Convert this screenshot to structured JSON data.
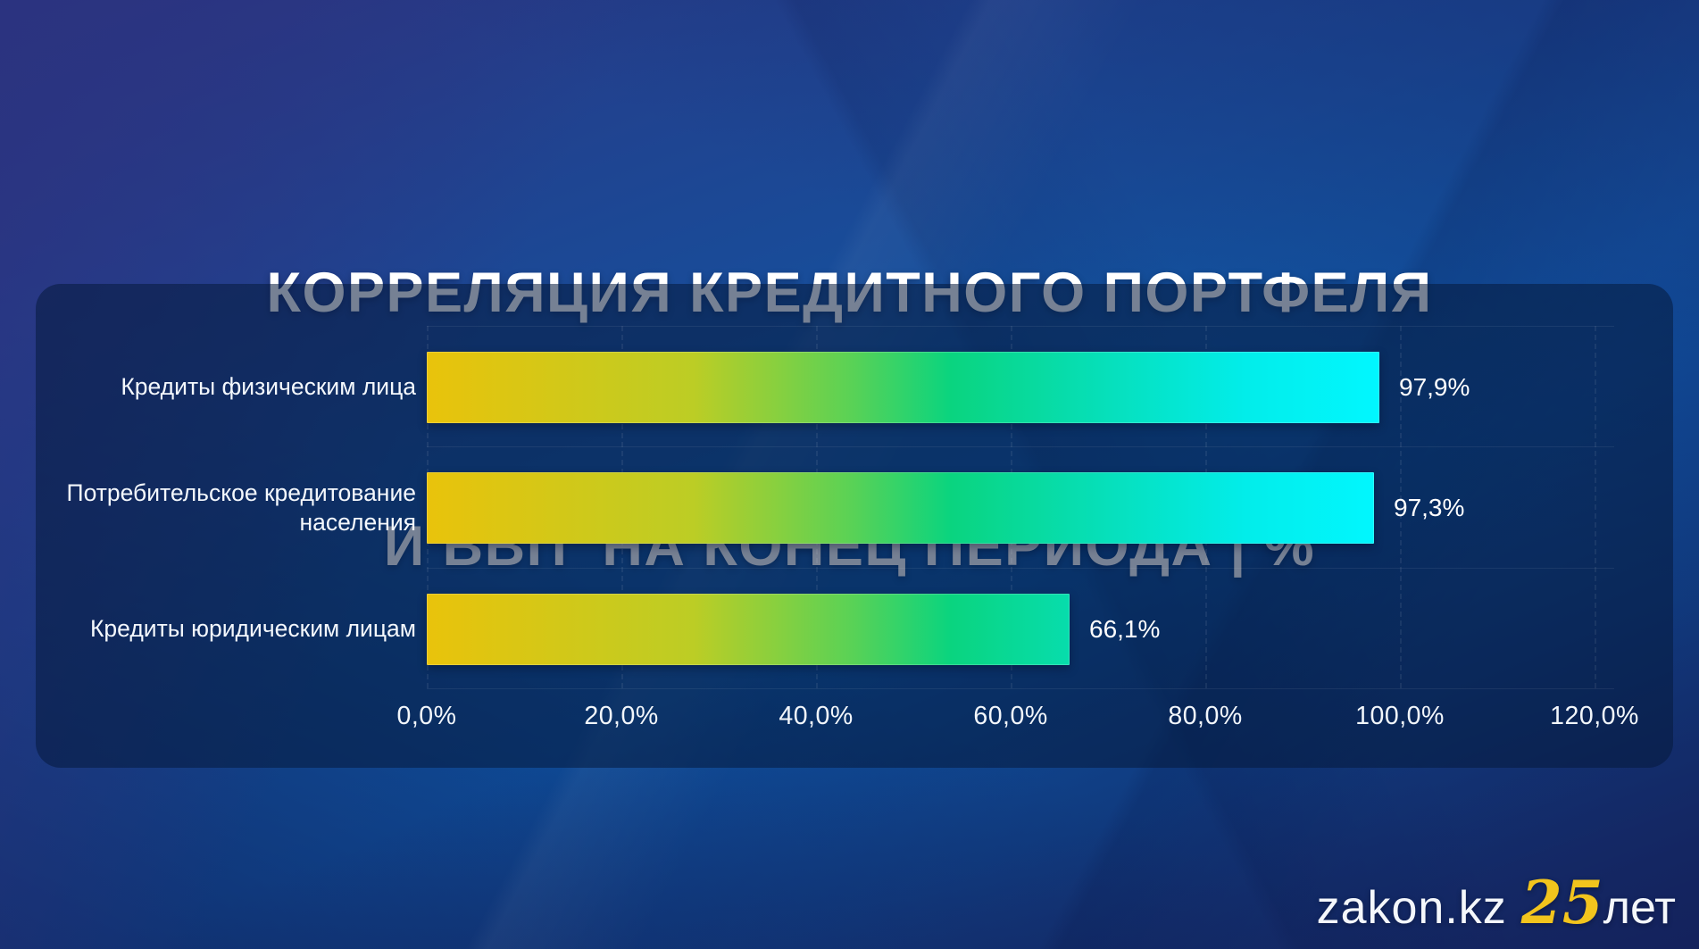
{
  "title": {
    "line1": "КОРРЕЛЯЦИЯ КРЕДИТНОГО ПОРТФЕЛЯ",
    "line2": "И ВВП  НА КОНЕЦ ПЕРИОДА | %"
  },
  "chart_data": {
    "type": "bar",
    "orientation": "horizontal",
    "title": "КОРРЕЛЯЦИЯ КРЕДИТНОГО ПОРТФЕЛЯ И ВВП НА КОНЕЦ ПЕРИОДА | %",
    "categories": [
      "Кредиты физическим лица",
      "Потребительское кредитование населения",
      "Кредиты юридическим лицам"
    ],
    "values": [
      97.9,
      97.3,
      66.1
    ],
    "value_labels": [
      "97,9%",
      "97,3%",
      "66,1%"
    ],
    "xlim": [
      0,
      120
    ],
    "x_tick_step": 20,
    "x_tick_labels": [
      "0,0%",
      "20,0%",
      "40,0%",
      "60,0%",
      "80,0%",
      "100,0%",
      "120,0%"
    ],
    "grid": "faint dashed vertical gridlines at each tick, faint horizontal row separators",
    "legend": "none",
    "bar_gradient": [
      "#e9c30b",
      "#bccd25",
      "#57d257",
      "#0ad47f",
      "#06e0bd",
      "#02edea",
      "#01f7ff"
    ],
    "bar_gradient_stops": [
      0,
      28,
      45,
      55,
      72,
      86,
      100
    ]
  },
  "colors": {
    "background_top_left": "#2c3480",
    "background_azure": "#0d55a6",
    "background_bottom": "#162a66",
    "panel": "rgba(6,25,60,0.55)",
    "text": "#ffffff",
    "logo_accent": "#f2c41d"
  },
  "footer": {
    "brand": "zakon.kz",
    "anniversary_number": "25",
    "anniversary_suffix": "лет"
  }
}
